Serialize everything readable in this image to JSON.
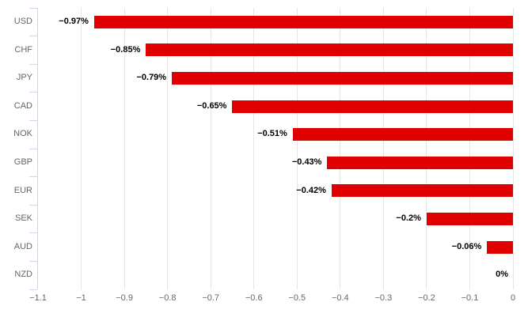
{
  "chart_data": {
    "type": "bar",
    "orientation": "horizontal",
    "title": "",
    "xlabel": "",
    "ylabel": "",
    "categories": [
      "USD",
      "CHF",
      "JPY",
      "CAD",
      "NOK",
      "GBP",
      "EUR",
      "SEK",
      "AUD",
      "NZD"
    ],
    "series": [
      {
        "name": "change_pct",
        "values": [
          -0.97,
          -0.85,
          -0.79,
          -0.65,
          -0.51,
          -0.43,
          -0.42,
          -0.2,
          -0.06,
          0
        ],
        "value_labels": [
          "−0.97%",
          "−0.85%",
          "−0.79%",
          "−0.65%",
          "−0.51%",
          "−0.43%",
          "−0.42%",
          "−0.2%",
          "−0.06%",
          "0%"
        ]
      }
    ],
    "xlim": [
      -1.1,
      0
    ],
    "x_ticks": [
      -1.1,
      -1,
      -0.9,
      -0.8,
      -0.7,
      -0.6,
      -0.5,
      -0.4,
      -0.3,
      -0.2,
      -0.1,
      0
    ],
    "x_tick_labels": [
      "−1.1",
      "−1",
      "−0.9",
      "−0.8",
      "−0.7",
      "−0.6",
      "−0.5",
      "−0.4",
      "−0.3",
      "−0.2",
      "−0.1",
      "0"
    ],
    "grid": true,
    "legend": "none",
    "colors": {
      "bar": "#e00000",
      "grid": "#e6e6e6",
      "axis_line": "#ccd6eb",
      "category_label": "#666666",
      "tick_label": "#666666",
      "data_label": "#000000",
      "background": "#ffffff"
    }
  }
}
